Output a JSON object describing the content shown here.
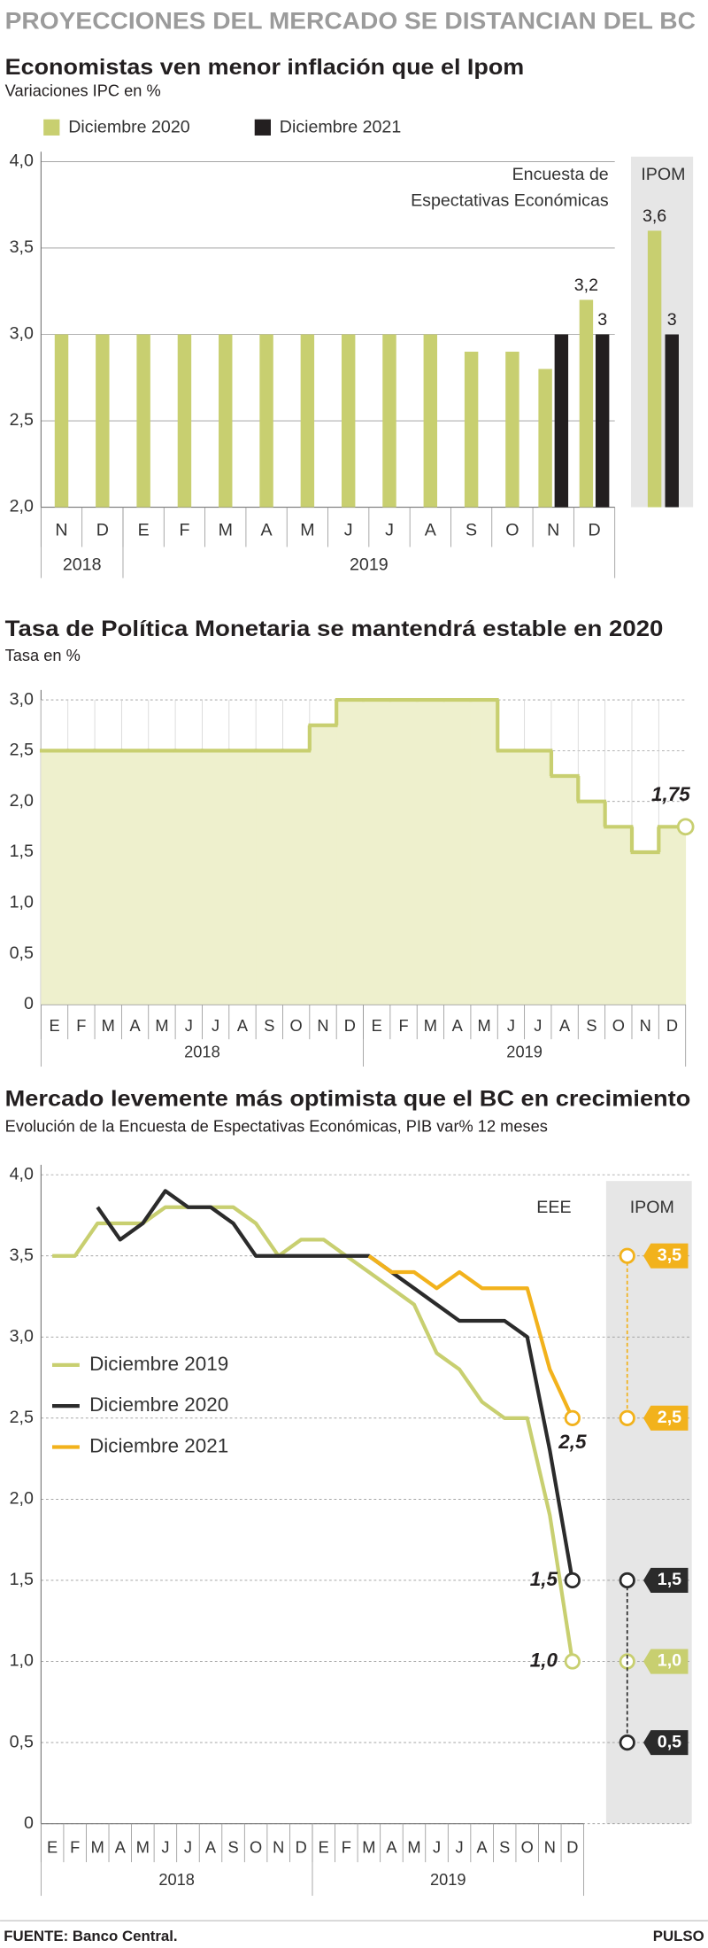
{
  "header": {
    "title": "PROYECCIONES DEL MERCADO SE DISTANCIAN DEL BC"
  },
  "footer": {
    "source": "FUENTE: Banco Central.",
    "brand": "PULSO"
  },
  "chart_data": [
    {
      "type": "bar",
      "title": "Economistas ven menor inflación que el Ipom",
      "subtitle": "Variaciones IPC en %",
      "categories": [
        "N",
        "D",
        "E",
        "F",
        "M",
        "A",
        "M",
        "J",
        "J",
        "A",
        "S",
        "O",
        "N",
        "D"
      ],
      "year_groups": [
        {
          "label": "2018",
          "count": 2
        },
        {
          "label": "2019",
          "count": 12
        }
      ],
      "series": [
        {
          "name": "Diciembre 2020",
          "color": "#c8cf70",
          "values": [
            3,
            3,
            3,
            3,
            3,
            3,
            3,
            3,
            3,
            3,
            2.9,
            2.9,
            2.8,
            3.2
          ],
          "value_labels": [
            null,
            null,
            null,
            null,
            null,
            null,
            null,
            null,
            null,
            null,
            null,
            null,
            null,
            "3,2"
          ]
        },
        {
          "name": "Diciembre 2021",
          "color": "#231f20",
          "values": [
            null,
            null,
            null,
            null,
            null,
            null,
            null,
            null,
            null,
            null,
            null,
            null,
            3,
            3
          ],
          "value_labels": [
            null,
            null,
            null,
            null,
            null,
            null,
            null,
            null,
            null,
            null,
            null,
            null,
            null,
            "3"
          ]
        }
      ],
      "annotation": [
        "Encuesta de",
        "Espectativas Económicas"
      ],
      "ipom": {
        "label": "IPOM",
        "values": [
          3.6,
          3
        ],
        "value_labels": [
          "3,6",
          "3"
        ]
      },
      "ylim": [
        2,
        4
      ],
      "yticks": [
        {
          "value": 2,
          "label": "2,0"
        },
        {
          "value": 2.5,
          "label": "2,5"
        },
        {
          "value": 3,
          "label": "3,0"
        },
        {
          "value": 3.5,
          "label": "3,5"
        },
        {
          "value": 4,
          "label": "4,0"
        }
      ],
      "grid": true,
      "legend": "top-left"
    },
    {
      "type": "line",
      "step": true,
      "area": true,
      "title": "Tasa de Política Monetaria se mantendrá estable en 2020",
      "subtitle": "Tasa en %",
      "categories": [
        "E",
        "F",
        "M",
        "A",
        "M",
        "J",
        "J",
        "A",
        "S",
        "O",
        "N",
        "D",
        "E",
        "F",
        "M",
        "A",
        "M",
        "J",
        "J",
        "A",
        "S",
        "O",
        "N",
        "D"
      ],
      "year_groups": [
        {
          "label": "2018",
          "count": 12
        },
        {
          "label": "2019",
          "count": 12
        }
      ],
      "series": [
        {
          "color": "#c8cf70",
          "values": [
            2.5,
            2.5,
            2.5,
            2.5,
            2.5,
            2.5,
            2.5,
            2.5,
            2.5,
            2.5,
            2.75,
            3,
            3,
            3,
            3,
            3,
            3,
            2.5,
            2.5,
            2.25,
            2,
            1.75,
            1.5,
            1.75
          ],
          "value_labels": [
            null,
            null,
            null,
            null,
            null,
            null,
            null,
            null,
            null,
            null,
            null,
            null,
            null,
            null,
            null,
            null,
            null,
            null,
            null,
            null,
            null,
            null,
            null,
            "1,75"
          ]
        }
      ],
      "ylim": [
        0,
        3
      ],
      "yticks": [
        0,
        {
          "value": 0.5,
          "label": "0,5"
        },
        {
          "value": 1,
          "label": "1,0"
        },
        {
          "value": 1.5,
          "label": "1,5"
        },
        {
          "value": 2,
          "label": "2,0"
        },
        {
          "value": 2.5,
          "label": "2,5"
        },
        {
          "value": 3,
          "label": "3,0"
        }
      ],
      "grid": true
    },
    {
      "type": "line",
      "title": "Mercado levemente más optimista que el BC en crecimiento",
      "subtitle": "Evolución de la Encuesta de Espectativas Económicas, PIB var% 12 meses",
      "categories": [
        "E",
        "F",
        "M",
        "A",
        "M",
        "J",
        "J",
        "A",
        "S",
        "O",
        "N",
        "D",
        "E",
        "F",
        "M",
        "A",
        "M",
        "J",
        "J",
        "A",
        "S",
        "O",
        "N",
        "D"
      ],
      "year_groups": [
        {
          "label": "2018",
          "count": 12
        },
        {
          "label": "2019",
          "count": 12
        }
      ],
      "series": [
        {
          "name": "Diciembre 2019",
          "color": "#c8cf70",
          "values": [
            3.5,
            3.5,
            3.7,
            3.7,
            3.7,
            3.8,
            3.8,
            3.8,
            3.8,
            3.7,
            3.5,
            3.6,
            3.6,
            3.5,
            3.4,
            3.3,
            3.2,
            2.9,
            2.8,
            2.6,
            2.5,
            2.5,
            1.9,
            1
          ],
          "value_labels": [
            null,
            null,
            null,
            null,
            null,
            null,
            null,
            null,
            null,
            null,
            null,
            null,
            null,
            null,
            null,
            null,
            null,
            null,
            null,
            null,
            null,
            null,
            null,
            "1,0"
          ]
        },
        {
          "name": "Diciembre 2020",
          "color": "#2b2b2b",
          "values": [
            null,
            null,
            3.8,
            3.6,
            3.7,
            3.9,
            3.8,
            3.8,
            3.7,
            3.5,
            3.5,
            3.5,
            3.5,
            3.5,
            3.5,
            3.4,
            3.3,
            3.2,
            3.1,
            3.1,
            3.1,
            3,
            2.3,
            1.5
          ],
          "value_labels": [
            null,
            null,
            null,
            null,
            null,
            null,
            null,
            null,
            null,
            null,
            null,
            null,
            null,
            null,
            null,
            null,
            null,
            null,
            null,
            null,
            null,
            null,
            null,
            "1,5"
          ]
        },
        {
          "name": "Diciembre 2021",
          "color": "#f2b21c",
          "values": [
            null,
            null,
            null,
            null,
            null,
            null,
            null,
            null,
            null,
            null,
            null,
            null,
            null,
            null,
            3.5,
            3.4,
            3.4,
            3.3,
            3.4,
            3.3,
            3.3,
            3.3,
            2.8,
            2.5
          ],
          "value_labels": [
            null,
            null,
            null,
            null,
            null,
            null,
            null,
            null,
            null,
            null,
            null,
            null,
            null,
            null,
            null,
            null,
            null,
            null,
            null,
            null,
            null,
            null,
            null,
            "2,5"
          ]
        }
      ],
      "annotation": "EEE",
      "ipom": {
        "label": "IPOM",
        "series_values": [
          [
            1
          ],
          [
            1.5,
            0.5
          ],
          [
            3.5,
            2.5
          ]
        ],
        "value_labels": [
          [
            "1,0"
          ],
          [
            "1,5",
            "0,5"
          ],
          [
            "3,5",
            "2,5"
          ]
        ]
      },
      "ylim": [
        0,
        4
      ],
      "yticks": [
        0,
        {
          "value": 0.5,
          "label": "0,5"
        },
        {
          "value": 1,
          "label": "1,0"
        },
        {
          "value": 1.5,
          "label": "1,5"
        },
        {
          "value": 2,
          "label": "2,0"
        },
        {
          "value": 2.5,
          "label": "2,5"
        },
        {
          "value": 3,
          "label": "3,0"
        },
        {
          "value": 3.5,
          "label": "3,5"
        },
        {
          "value": 4,
          "label": "4,0"
        }
      ],
      "grid": true,
      "legend": "middle-left"
    }
  ]
}
